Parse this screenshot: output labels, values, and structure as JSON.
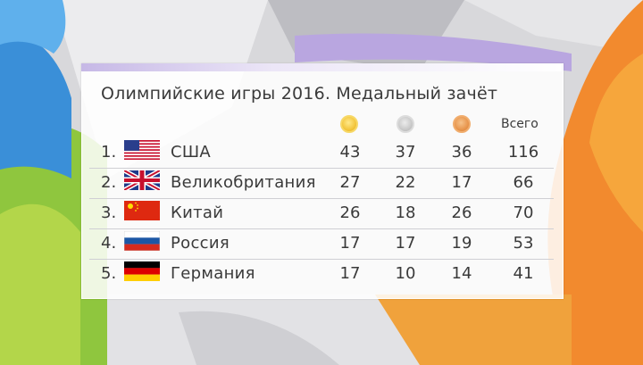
{
  "title": "Олимпийские игры 2016. Медальный зачёт",
  "columns": {
    "total_label": "Всего"
  },
  "medal_colors": {
    "gold": "#f3c63d",
    "silver": "#c9c9c9",
    "bronze": "#e8964e"
  },
  "rows": [
    {
      "rank": "1.",
      "country": "США",
      "flag": "usa-flag-icon",
      "gold": "43",
      "silver": "37",
      "bronze": "36",
      "total": "116"
    },
    {
      "rank": "2.",
      "country": "Великобритания",
      "flag": "uk-flag-icon",
      "gold": "27",
      "silver": "22",
      "bronze": "17",
      "total": "66"
    },
    {
      "rank": "3.",
      "country": "Китай",
      "flag": "china-flag-icon",
      "gold": "26",
      "silver": "18",
      "bronze": "26",
      "total": "70"
    },
    {
      "rank": "4.",
      "country": "Россия",
      "flag": "russia-flag-icon",
      "gold": "17",
      "silver": "17",
      "bronze": "19",
      "total": "53"
    },
    {
      "rank": "5.",
      "country": "Германия",
      "flag": "germany-flag-icon",
      "gold": "17",
      "silver": "10",
      "bronze": "14",
      "total": "41"
    }
  ]
}
